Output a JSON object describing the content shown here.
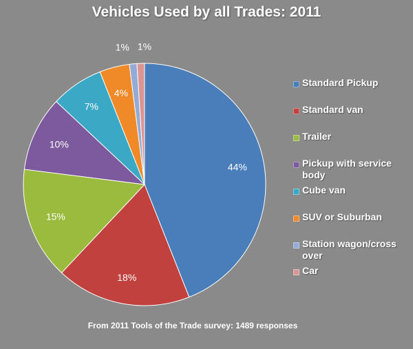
{
  "chart_data": {
    "type": "pie",
    "title": "Vehicles Used by all Trades: 2011",
    "footnote": "From 2011 Tools of the Trade survey: 1489 responses",
    "legend_position": "right",
    "slices": [
      {
        "name": "Standard Pickup",
        "value": 44,
        "label": "44%",
        "color": "#4a7ebb"
      },
      {
        "name": "Standard van",
        "value": 18,
        "label": "18%",
        "color": "#c0413d"
      },
      {
        "name": "Trailer",
        "value": 15,
        "label": "15%",
        "color": "#9bbb3e"
      },
      {
        "name": "Pickup with service body",
        "value": 10,
        "label": "10%",
        "color": "#7d5a9e"
      },
      {
        "name": "Cube van",
        "value": 7,
        "label": "7%",
        "color": "#3ba8c6"
      },
      {
        "name": "SUV or Suburban",
        "value": 4,
        "label": "4%",
        "color": "#f08a28"
      },
      {
        "name": "Station wagon/cross over",
        "value": 1,
        "label": "1%",
        "color": "#94abd6"
      },
      {
        "name": "Car",
        "value": 1,
        "label": "1%",
        "color": "#d99694"
      }
    ]
  }
}
